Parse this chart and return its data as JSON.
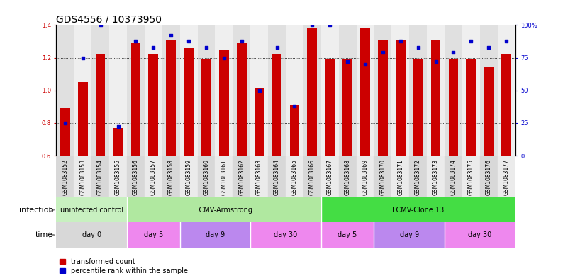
{
  "title": "GDS4556 / 10373950",
  "samples": [
    "GSM1083152",
    "GSM1083153",
    "GSM1083154",
    "GSM1083155",
    "GSM1083156",
    "GSM1083157",
    "GSM1083158",
    "GSM1083159",
    "GSM1083160",
    "GSM1083161",
    "GSM1083162",
    "GSM1083163",
    "GSM1083164",
    "GSM1083165",
    "GSM1083166",
    "GSM1083167",
    "GSM1083168",
    "GSM1083169",
    "GSM1083170",
    "GSM1083171",
    "GSM1083172",
    "GSM1083173",
    "GSM1083174",
    "GSM1083175",
    "GSM1083176",
    "GSM1083177"
  ],
  "transformed_count": [
    0.89,
    1.05,
    1.22,
    0.77,
    1.29,
    1.22,
    1.31,
    1.26,
    1.19,
    1.25,
    1.29,
    1.01,
    1.22,
    0.91,
    1.38,
    1.19,
    1.19,
    1.38,
    1.31,
    1.31,
    1.19,
    1.31,
    1.19,
    1.19,
    1.14,
    1.22
  ],
  "percentile_values": [
    25,
    75,
    100,
    22,
    88,
    83,
    92,
    88,
    83,
    75,
    88,
    50,
    83,
    38,
    100,
    100,
    72,
    70,
    79,
    88,
    83,
    72,
    79,
    88,
    83,
    88
  ],
  "bar_color": "#cc0000",
  "dot_color": "#0000cc",
  "ylim_left": [
    0.6,
    1.4
  ],
  "ylim_right": [
    0,
    100
  ],
  "yticks_left": [
    0.6,
    0.8,
    1.0,
    1.2,
    1.4
  ],
  "yticks_right": [
    0,
    25,
    50,
    75,
    100
  ],
  "ytick_labels_right": [
    "0",
    "25",
    "50",
    "75",
    "100%"
  ],
  "infection_groups": [
    {
      "label": "uninfected control",
      "start": 0,
      "end": 4,
      "color": "#c8f0c0"
    },
    {
      "label": "LCMV-Armstrong",
      "start": 4,
      "end": 15,
      "color": "#b0e8a0"
    },
    {
      "label": "LCMV-Clone 13",
      "start": 15,
      "end": 26,
      "color": "#44dd44"
    }
  ],
  "time_groups": [
    {
      "label": "day 0",
      "start": 0,
      "end": 4,
      "color": "#d8d8d8"
    },
    {
      "label": "day 5",
      "start": 4,
      "end": 7,
      "color": "#ee88ee"
    },
    {
      "label": "day 9",
      "start": 7,
      "end": 11,
      "color": "#bb88ee"
    },
    {
      "label": "day 30",
      "start": 11,
      "end": 15,
      "color": "#ee88ee"
    },
    {
      "label": "day 5",
      "start": 15,
      "end": 18,
      "color": "#ee88ee"
    },
    {
      "label": "day 9",
      "start": 18,
      "end": 22,
      "color": "#bb88ee"
    },
    {
      "label": "day 30",
      "start": 22,
      "end": 26,
      "color": "#ee88ee"
    }
  ],
  "title_fontsize": 10,
  "tick_fontsize": 6,
  "bar_label_fontsize": 7,
  "row_label_fontsize": 8
}
